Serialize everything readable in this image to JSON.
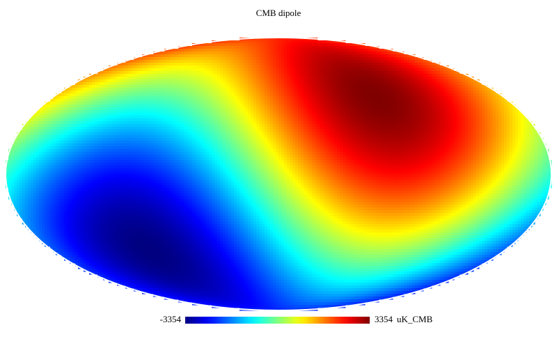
{
  "chart_data": {
    "type": "mollweide",
    "title": "CMB dipole",
    "colormap": "jet",
    "colorbar_min": -3354,
    "colorbar_max": 3354,
    "unit": "uK_CMB"
  }
}
